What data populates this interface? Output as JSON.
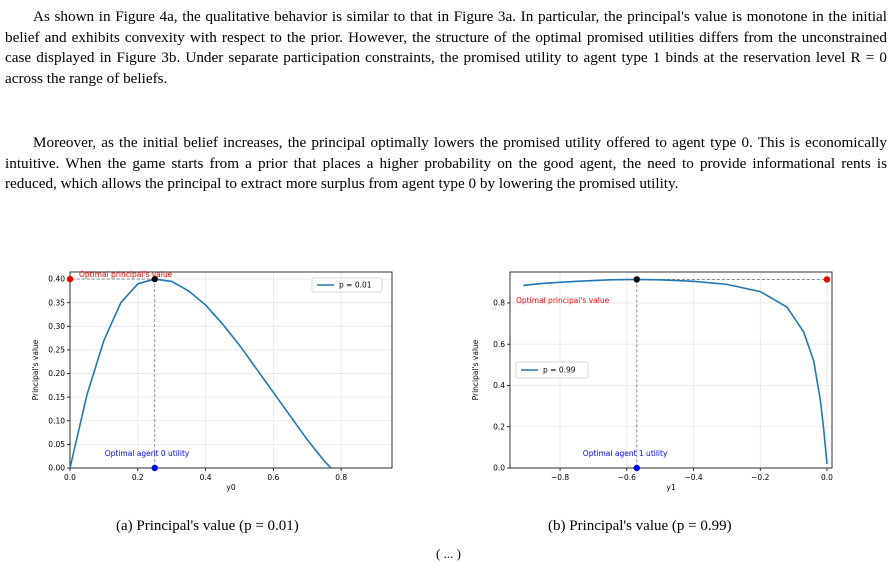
{
  "paragraphs": [
    "As shown in Figure 4a, the qualitative behavior is similar to that in Figure 3a. In particular, the principal's value is monotone in the initial belief and exhibits convexity with respect to the prior. However, the structure of the optimal promised utilities differs from the unconstrained case displayed in Figure 3b. Under separate participation constraints, the promised utility to agent type 1 binds at the reservation level R = 0 across the range of beliefs.",
    "Moreover, as the initial belief increases, the principal optimally lowers the promised utility offered to agent type 0. This is economically intuitive. When the game starts from a prior that places a higher probability on the good agent, the need to provide informational rents is reduced, which allows the principal to extract more surplus from agent type 0 by lowering the promised utility."
  ],
  "captions": {
    "a": "(a) Principal's value (p = 0.01)",
    "b": "(b) Principal's value (p = 0.99)"
  },
  "equation_stub": "( ... )",
  "colors": {
    "line": "#1f77b4",
    "optimal_value": "#ff0000",
    "optimal_utility": "#0000ff",
    "max_point": "#000000",
    "grid": "#e6e6e6"
  },
  "chart_data": [
    {
      "type": "line",
      "xlabel": "y0",
      "ylabel": "Principal's value",
      "xlim": [
        0.0,
        0.95
      ],
      "ylim": [
        0.0,
        0.415
      ],
      "xticks": [
        "0.0",
        "0.2",
        "0.4",
        "0.6",
        "0.8"
      ],
      "yticks": [
        "0.00",
        "0.05",
        "0.10",
        "0.15",
        "0.20",
        "0.25",
        "0.30",
        "0.35",
        "0.40"
      ],
      "grid": true,
      "legend": "top-right",
      "series": [
        {
          "name": "p = 0.01",
          "x": [
            0.0,
            0.05,
            0.1,
            0.15,
            0.2,
            0.25,
            0.3,
            0.35,
            0.4,
            0.45,
            0.5,
            0.55,
            0.6,
            0.65,
            0.7,
            0.75,
            0.77
          ],
          "y": [
            0.0,
            0.155,
            0.27,
            0.35,
            0.39,
            0.4,
            0.395,
            0.375,
            0.345,
            0.305,
            0.26,
            0.21,
            0.16,
            0.11,
            0.06,
            0.015,
            0.0
          ]
        }
      ],
      "annotations": [
        {
          "text": "Optimal principal's value",
          "x": 0.0,
          "y": 0.4
        },
        {
          "text": "Optimal agent 0 utility",
          "x": 0.25,
          "y": 0.0
        }
      ],
      "optimum": {
        "x": 0.25,
        "y": 0.4
      }
    },
    {
      "type": "line",
      "xlabel": "y1",
      "ylabel": "Principal's value",
      "xlim": [
        -0.95,
        0.015
      ],
      "ylim": [
        0.0,
        0.95
      ],
      "xticks": [
        "−0.8",
        "−0.6",
        "−0.4",
        "−0.2",
        "0.0"
      ],
      "yticks": [
        "0.0",
        "0.2",
        "0.4",
        "0.6",
        "0.8"
      ],
      "grid": true,
      "legend": "left",
      "series": [
        {
          "name": "p = 0.99",
          "x": [
            -0.91,
            -0.85,
            -0.75,
            -0.65,
            -0.57,
            -0.5,
            -0.4,
            -0.3,
            -0.2,
            -0.12,
            -0.07,
            -0.04,
            -0.02,
            -0.01,
            0.0
          ],
          "y": [
            0.885,
            0.895,
            0.905,
            0.912,
            0.914,
            0.912,
            0.905,
            0.89,
            0.855,
            0.78,
            0.66,
            0.52,
            0.33,
            0.19,
            0.02
          ]
        }
      ],
      "annotations": [
        {
          "text": "Optimal principal's value",
          "x": 0.0,
          "y": 0.91
        },
        {
          "text": "Optimal agent 1 utility",
          "x": -0.57,
          "y": 0.0
        }
      ],
      "optimum": {
        "x": -0.57,
        "y": 0.914
      }
    }
  ]
}
